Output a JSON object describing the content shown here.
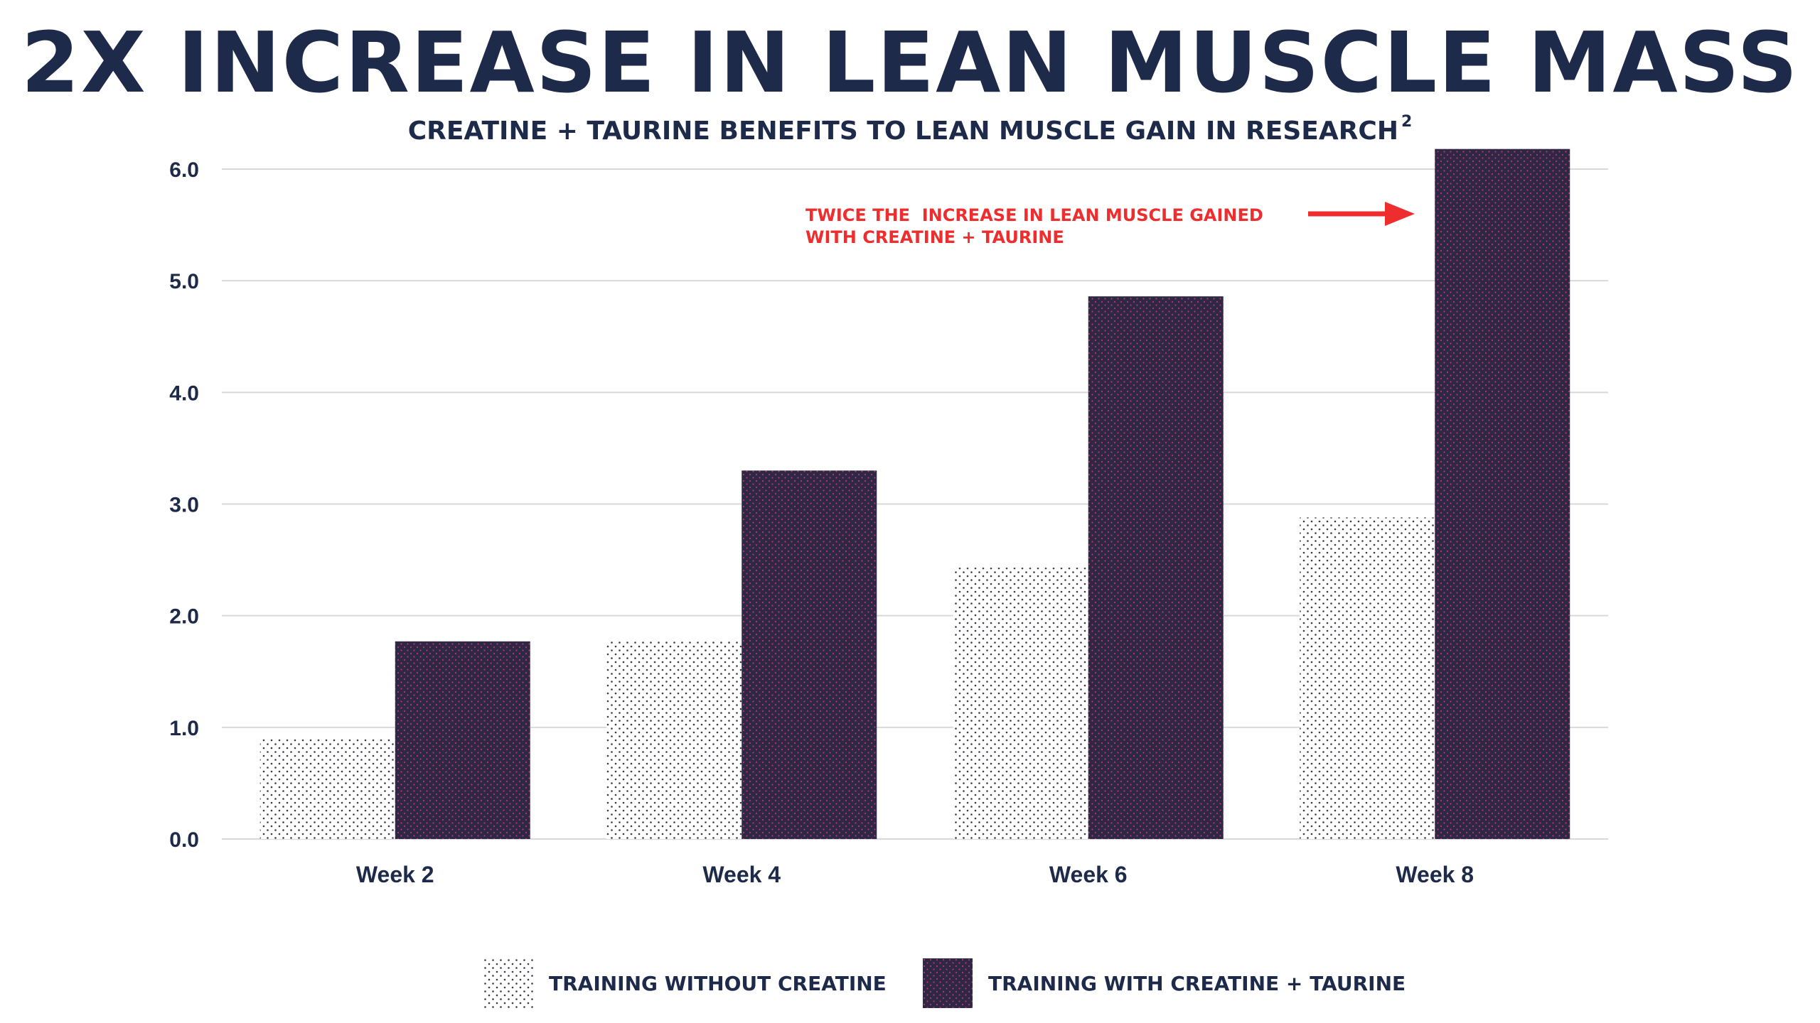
{
  "headline": "2X INCREASE IN LEAN MUSCLE MASS",
  "subheadline": "CREATINE + TAURINE BENEFITS TO LEAN MUSCLE GAIN IN RESEARCH",
  "subheadline_superscript": "2",
  "colors": {
    "navy": "#1e2a4a",
    "bar_dark": "#2e2746",
    "bar_dark_dots": "#b63a62",
    "bar_light_dots": "#3b3b46",
    "annotation_red": "#ee2e2e",
    "gridline": "#d9d9d9"
  },
  "chart_data": {
    "type": "bar",
    "title": "",
    "xlabel": "",
    "ylabel": "",
    "categories": [
      "Week 2",
      "Week 4",
      "Week 6",
      "Week 8"
    ],
    "ylim": [
      0,
      6.0
    ],
    "yticks": [
      "0.0",
      "1.0",
      "2.0",
      "3.0",
      "4.0",
      "5.0",
      "6.0"
    ],
    "grid": true,
    "legend_position": "bottom",
    "series": [
      {
        "name": "TRAINING WITHOUT CREATINE",
        "pattern": "light-dotted",
        "values": [
          0.9,
          1.77,
          2.43,
          2.88
        ]
      },
      {
        "name": "TRAINING WITH CREATINE + TAURINE",
        "pattern": "dark-dotted",
        "values": [
          1.77,
          3.3,
          4.86,
          6.18
        ]
      }
    ],
    "annotation": {
      "lines": [
        "TWICE THE  INCREASE IN LEAN MUSCLE GAINED",
        "WITH CREATINE + TAURINE"
      ],
      "points_to": {
        "series": 1,
        "category": "Week 8"
      }
    }
  }
}
